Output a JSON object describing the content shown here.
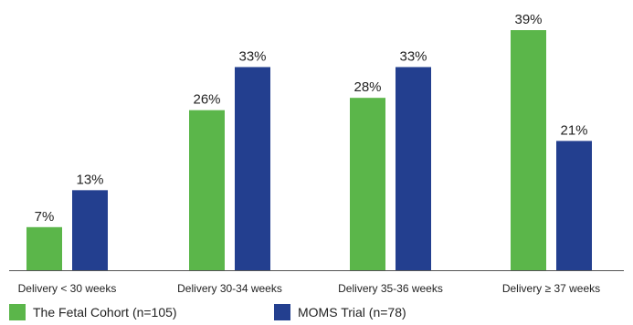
{
  "chart_data": {
    "type": "bar",
    "title": "",
    "xlabel": "",
    "ylabel": "",
    "ylim": [
      0,
      40
    ],
    "grid": false,
    "legend_position": "bottom",
    "categories": [
      "Delivery < 30 weeks",
      "Delivery 30-34 weeks",
      "Delivery 35-36 weeks",
      "Delivery ≥ 37 weeks"
    ],
    "series": [
      {
        "name": "The Fetal Cohort (n=105)",
        "color": "#5bb64a",
        "values": [
          7,
          26,
          28,
          39
        ],
        "labels": [
          "7%",
          "26%",
          "28%",
          "39%"
        ]
      },
      {
        "name": "MOMS Trial (n=78)",
        "color": "#233f8f",
        "values": [
          13,
          33,
          33,
          21
        ],
        "labels": [
          "13%",
          "33%",
          "33%",
          "21%"
        ]
      }
    ]
  }
}
